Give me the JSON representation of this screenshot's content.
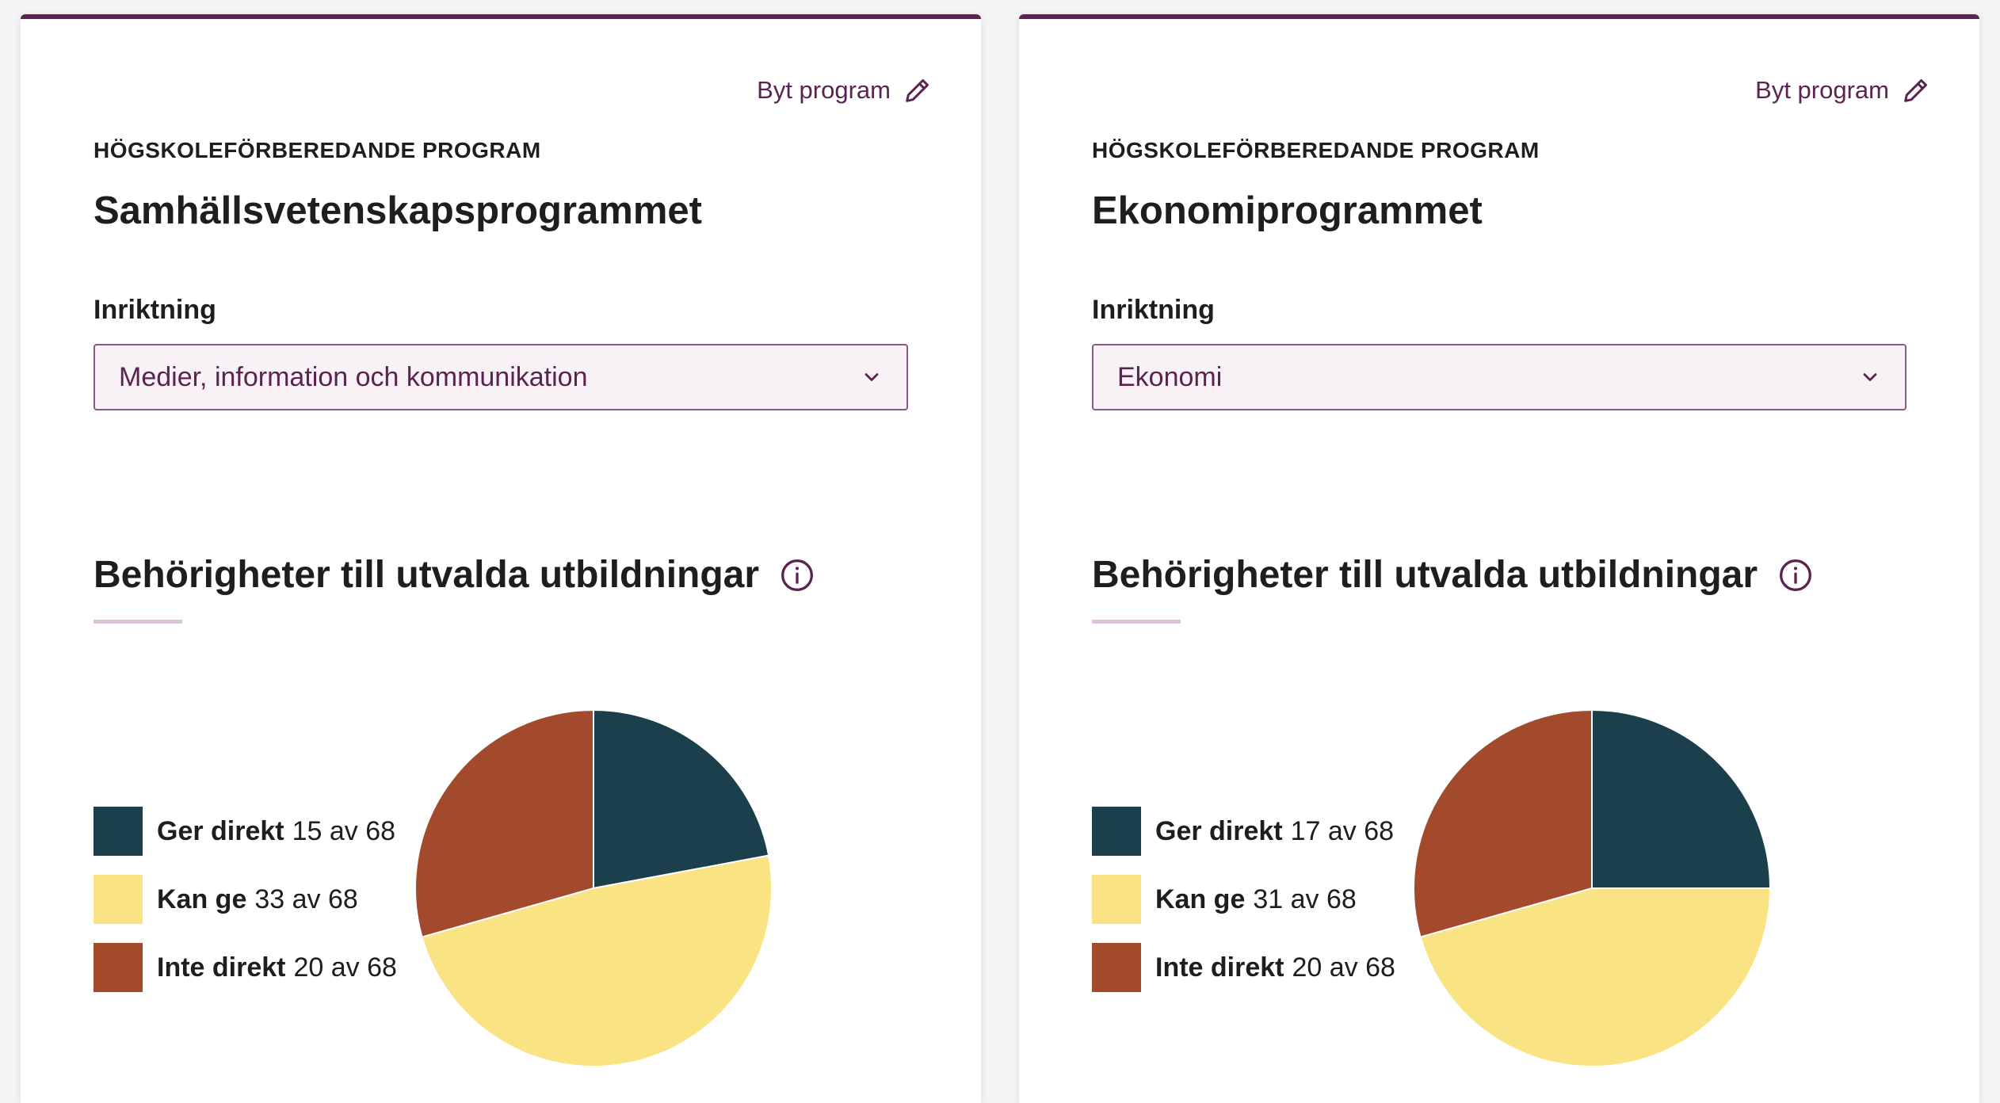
{
  "colors": {
    "accent": "#5a2350",
    "ger_direkt": "#1b3f4b",
    "kan_ge": "#f9e382",
    "inte_direkt": "#a34a2c"
  },
  "cards": [
    {
      "change_label": "Byt program",
      "change_icon": "pencil-icon",
      "program_type": "HÖGSKOLEFÖRBEREDANDE PROGRAM",
      "program_name": "Samhällsvetenskapsprogrammet",
      "field_label": "Inriktning",
      "field_value": "Medier, information och kommunikation",
      "section_title": "Behörigheter till utvalda utbildningar",
      "info_icon": "info-icon",
      "legend": [
        {
          "name": "Ger direkt",
          "count": "15 av 68"
        },
        {
          "name": "Kan ge",
          "count": "33 av 68"
        },
        {
          "name": "Inte direkt",
          "count": "20 av 68"
        }
      ]
    },
    {
      "change_label": "Byt program",
      "change_icon": "pencil-icon",
      "program_type": "HÖGSKOLEFÖRBEREDANDE PROGRAM",
      "program_name": "Ekonomiprogrammet",
      "field_label": "Inriktning",
      "field_value": "Ekonomi",
      "section_title": "Behörigheter till utvalda utbildningar",
      "info_icon": "info-icon",
      "legend": [
        {
          "name": "Ger direkt",
          "count": "17 av 68"
        },
        {
          "name": "Kan ge",
          "count": "31 av 68"
        },
        {
          "name": "Inte direkt",
          "count": "20 av 68"
        }
      ]
    }
  ],
  "chart_data": [
    {
      "type": "pie",
      "title": "",
      "categories": [
        "Ger direkt",
        "Kan ge",
        "Inte direkt"
      ],
      "values": [
        15,
        33,
        20
      ],
      "colors": [
        "#1b3f4b",
        "#f9e382",
        "#a34a2c"
      ]
    },
    {
      "type": "pie",
      "title": "",
      "categories": [
        "Ger direkt",
        "Kan ge",
        "Inte direkt"
      ],
      "values": [
        17,
        31,
        20
      ],
      "colors": [
        "#1b3f4b",
        "#f9e382",
        "#a34a2c"
      ]
    }
  ]
}
